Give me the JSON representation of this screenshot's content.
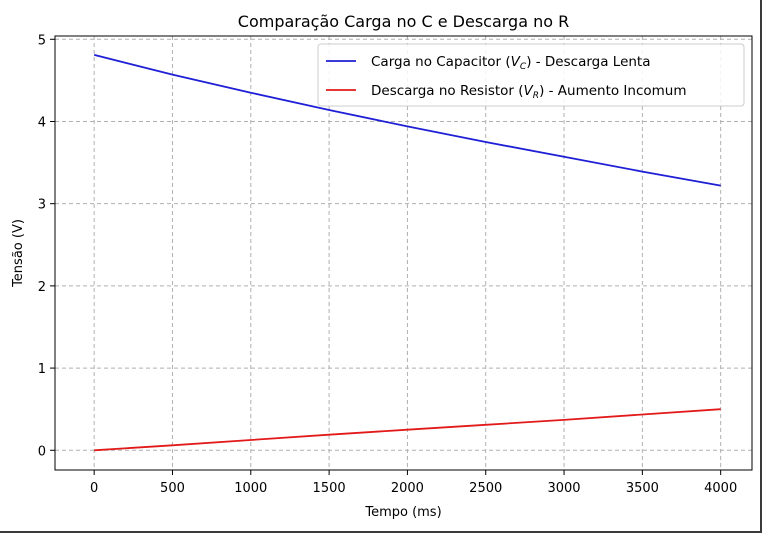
{
  "chart_data": {
    "type": "line",
    "title": "Comparação Carga no C e Descarga no R",
    "xlabel": "Tempo (ms)",
    "ylabel": "Tensão (V)",
    "xlim": [
      -250,
      4200
    ],
    "ylim": [
      -0.24,
      5.04
    ],
    "xticks": [
      0,
      500,
      1000,
      1500,
      2000,
      2500,
      3000,
      3500,
      4000
    ],
    "yticks": [
      0,
      1,
      2,
      3,
      4,
      5
    ],
    "grid": true,
    "legend_position": "top-right",
    "series": [
      {
        "name_parts": [
          "Carga no Capacitor (",
          "V",
          "C",
          ") - Descarga Lenta"
        ],
        "color": "#1f1fd6",
        "x": [
          0,
          500,
          1000,
          1500,
          2000,
          2500,
          3000,
          3500,
          4000
        ],
        "values": [
          4.81,
          4.57,
          4.35,
          4.14,
          3.94,
          3.75,
          3.57,
          3.39,
          3.22
        ]
      },
      {
        "name_parts": [
          "Descarga no Resistor (",
          "V",
          "R",
          ") - Aumento Incomum"
        ],
        "color": "#e31a1a",
        "x": [
          0,
          500,
          1000,
          1500,
          2000,
          2500,
          3000,
          3500,
          4000
        ],
        "values": [
          0.0,
          0.06,
          0.125,
          0.19,
          0.25,
          0.31,
          0.37,
          0.435,
          0.5
        ]
      }
    ]
  }
}
